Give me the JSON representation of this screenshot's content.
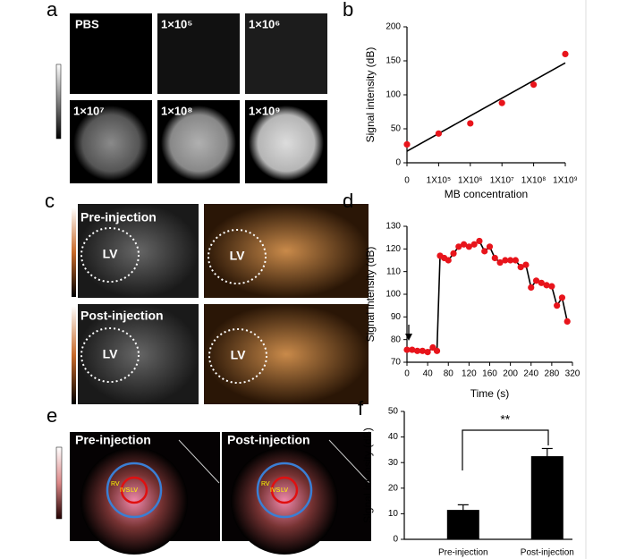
{
  "panel_labels": [
    "a",
    "b",
    "c",
    "d",
    "e",
    "f"
  ],
  "images": {
    "a": [
      "PBS",
      "1×10⁵",
      "1×10⁶",
      "1×10⁷",
      "1×10⁸",
      "1×10⁹"
    ],
    "c": {
      "rows": [
        "Pre-injection",
        "Post-injection"
      ],
      "region": "LV"
    },
    "e": {
      "columns": [
        "Pre-injection",
        "Post-injection"
      ],
      "regions": [
        "RV",
        "IVS",
        "LV"
      ]
    }
  },
  "chart_data": [
    {
      "type": "scatter",
      "ylabel": "Signal intensity (dB)",
      "xlabel": "MB concentration",
      "categories": [
        "0",
        "1X10⁵",
        "1X10⁶",
        "1X10⁷",
        "1X10⁸",
        "1X10⁹"
      ],
      "values": [
        27,
        43,
        58,
        88,
        115,
        160
      ],
      "color": "#e8141b",
      "trendline": {
        "start": 17,
        "end": 147,
        "color": "#000000"
      },
      "ylim": [
        0,
        200
      ],
      "yticks": [
        0,
        50,
        100,
        150,
        200
      ]
    },
    {
      "type": "line",
      "ylabel": "Signal intensity (dB)",
      "xlabel": "Time (s)",
      "x": [
        0,
        10,
        20,
        30,
        40,
        50,
        58,
        64,
        72,
        80,
        90,
        100,
        110,
        120,
        130,
        140,
        150,
        160,
        170,
        180,
        190,
        200,
        210,
        220,
        230,
        240,
        250,
        260,
        270,
        280,
        290,
        300,
        310
      ],
      "values": [
        75.5,
        75.5,
        75,
        75,
        74.5,
        76.5,
        75,
        117,
        116,
        115,
        118,
        121,
        122,
        121,
        122,
        123.5,
        119,
        121,
        116,
        114,
        115,
        115,
        115,
        112,
        113,
        103,
        106,
        105,
        104,
        103.5,
        95,
        98.5,
        88
      ],
      "color": "#e8141b",
      "line_color": "#000000",
      "xlim": [
        0,
        320
      ],
      "xticks": [
        0,
        40,
        80,
        120,
        160,
        200,
        240,
        280,
        320
      ],
      "ylim": [
        70,
        130
      ],
      "yticks": [
        70,
        80,
        90,
        100,
        110,
        120,
        130
      ]
    },
    {
      "type": "bar",
      "ylabel": "Signal intensity (dB)",
      "categories": [
        "Pre-injection",
        "Post-injection"
      ],
      "values": [
        11.5,
        32.5
      ],
      "errors": [
        2,
        3
      ],
      "color": "#000000",
      "annotation": "**",
      "ylim": [
        0,
        50
      ],
      "yticks": [
        0,
        10,
        20,
        30,
        40,
        50
      ]
    }
  ]
}
